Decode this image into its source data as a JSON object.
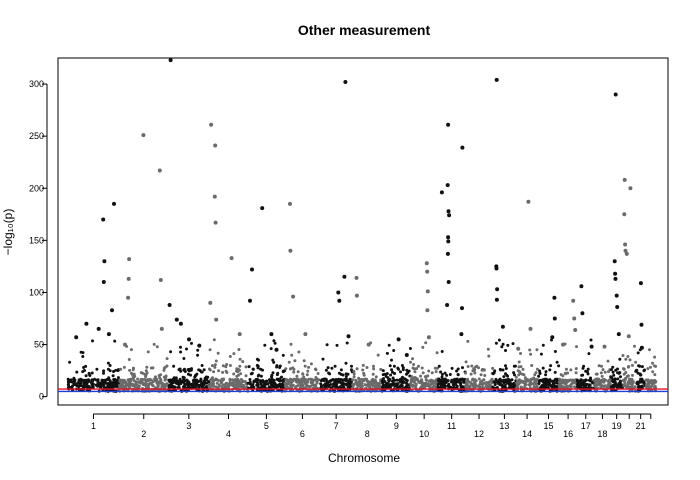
{
  "chart_data": {
    "type": "scatter",
    "title": "Other measurement",
    "xlabel": "Chromosome",
    "ylabel": "−log₁₀(p)",
    "ylim": [
      -8,
      325
    ],
    "y_ticks": [
      0,
      50,
      100,
      150,
      200,
      250,
      300
    ],
    "grid": false,
    "legend": "none",
    "chromosomes": [
      "1",
      "2",
      "3",
      "4",
      "5",
      "6",
      "7",
      "8",
      "9",
      "10",
      "11",
      "12",
      "13",
      "14",
      "15",
      "16",
      "17",
      "18",
      "19",
      "20",
      "21",
      "22"
    ],
    "chromosome_labels": [
      "1",
      "2",
      "3",
      "4",
      "5",
      "6",
      "7",
      "8",
      "9",
      "10",
      "11",
      "12",
      "13",
      "14",
      "15",
      "16",
      "17",
      "18",
      "19",
      "",
      "21",
      ""
    ],
    "chromosome_spans": [
      [
        0,
        249
      ],
      [
        249,
        492
      ],
      [
        492,
        690
      ],
      [
        690,
        880
      ],
      [
        880,
        1061
      ],
      [
        1061,
        1232
      ],
      [
        1232,
        1391
      ],
      [
        1391,
        1537
      ],
      [
        1537,
        1675
      ],
      [
        1675,
        1809
      ],
      [
        1809,
        1944
      ],
      [
        1944,
        2077
      ],
      [
        2077,
        2192
      ],
      [
        2192,
        2299
      ],
      [
        2299,
        2401
      ],
      [
        2401,
        2491
      ],
      [
        2491,
        2574
      ],
      [
        2574,
        2654
      ],
      [
        2654,
        2713
      ],
      [
        2713,
        2777
      ],
      [
        2777,
        2825
      ],
      [
        2825,
        2876
      ]
    ],
    "colors": {
      "odd": "#111111",
      "even": "#6b6b6b",
      "threshold_red": "#e8112d",
      "threshold_blue": "#1e3fd8"
    },
    "thresholds": [
      {
        "value": 7.3,
        "color": "#e8112d"
      },
      {
        "value": 5,
        "color": "#1e3fd8"
      }
    ],
    "series": [
      {
        "points": [
          {
            "chr": 1,
            "pos": 40,
            "p": 57
          },
          {
            "chr": 1,
            "pos": 90,
            "p": 70
          },
          {
            "chr": 1,
            "pos": 150,
            "p": 65
          },
          {
            "chr": 1,
            "pos": 175,
            "p": 110
          },
          {
            "chr": 1,
            "pos": 178,
            "p": 130
          },
          {
            "chr": 1,
            "pos": 172,
            "p": 170
          },
          {
            "chr": 1,
            "pos": 225,
            "p": 185
          },
          {
            "chr": 1,
            "pos": 215,
            "p": 83
          },
          {
            "chr": 1,
            "pos": 200,
            "p": 60
          },
          {
            "chr": 2,
            "pos": 30,
            "p": 50
          },
          {
            "chr": 2,
            "pos": 45,
            "p": 95
          },
          {
            "chr": 2,
            "pos": 48,
            "p": 113
          },
          {
            "chr": 2,
            "pos": 50,
            "p": 132
          },
          {
            "chr": 2,
            "pos": 120,
            "p": 251
          },
          {
            "chr": 2,
            "pos": 200,
            "p": 217
          },
          {
            "chr": 2,
            "pos": 205,
            "p": 112
          },
          {
            "chr": 2,
            "pos": 210,
            "p": 65
          },
          {
            "chr": 3,
            "pos": 10,
            "p": 323
          },
          {
            "chr": 3,
            "pos": 5,
            "p": 88
          },
          {
            "chr": 3,
            "pos": 40,
            "p": 74
          },
          {
            "chr": 3,
            "pos": 60,
            "p": 70
          },
          {
            "chr": 3,
            "pos": 100,
            "p": 55
          },
          {
            "chr": 3,
            "pos": 150,
            "p": 49
          },
          {
            "chr": 4,
            "pos": 10,
            "p": 261
          },
          {
            "chr": 4,
            "pos": 6,
            "p": 90
          },
          {
            "chr": 4,
            "pos": 30,
            "p": 241
          },
          {
            "chr": 4,
            "pos": 28,
            "p": 192
          },
          {
            "chr": 4,
            "pos": 32,
            "p": 167
          },
          {
            "chr": 4,
            "pos": 35,
            "p": 74
          },
          {
            "chr": 4,
            "pos": 110,
            "p": 133
          },
          {
            "chr": 4,
            "pos": 150,
            "p": 60
          },
          {
            "chr": 5,
            "pos": 10,
            "p": 92
          },
          {
            "chr": 5,
            "pos": 20,
            "p": 122
          },
          {
            "chr": 5,
            "pos": 70,
            "p": 181
          },
          {
            "chr": 5,
            "pos": 115,
            "p": 60
          },
          {
            "chr": 5,
            "pos": 140,
            "p": 45
          },
          {
            "chr": 6,
            "pos": 25,
            "p": 185
          },
          {
            "chr": 6,
            "pos": 27,
            "p": 140
          },
          {
            "chr": 6,
            "pos": 40,
            "p": 96
          },
          {
            "chr": 6,
            "pos": 100,
            "p": 60
          },
          {
            "chr": 7,
            "pos": 90,
            "p": 100
          },
          {
            "chr": 7,
            "pos": 95,
            "p": 92
          },
          {
            "chr": 7,
            "pos": 125,
            "p": 302
          },
          {
            "chr": 7,
            "pos": 120,
            "p": 115
          },
          {
            "chr": 7,
            "pos": 140,
            "p": 58
          },
          {
            "chr": 8,
            "pos": 20,
            "p": 114
          },
          {
            "chr": 8,
            "pos": 22,
            "p": 97
          },
          {
            "chr": 8,
            "pos": 80,
            "p": 50
          },
          {
            "chr": 9,
            "pos": 80,
            "p": 55
          },
          {
            "chr": 9,
            "pos": 120,
            "p": 40
          },
          {
            "chr": 10,
            "pos": 80,
            "p": 128
          },
          {
            "chr": 10,
            "pos": 82,
            "p": 120
          },
          {
            "chr": 10,
            "pos": 85,
            "p": 101
          },
          {
            "chr": 10,
            "pos": 83,
            "p": 83
          },
          {
            "chr": 10,
            "pos": 90,
            "p": 57
          },
          {
            "chr": 11,
            "pos": 20,
            "p": 196
          },
          {
            "chr": 11,
            "pos": 50,
            "p": 261
          },
          {
            "chr": 11,
            "pos": 48,
            "p": 203
          },
          {
            "chr": 11,
            "pos": 52,
            "p": 178
          },
          {
            "chr": 11,
            "pos": 55,
            "p": 174
          },
          {
            "chr": 11,
            "pos": 50,
            "p": 153
          },
          {
            "chr": 11,
            "pos": 51,
            "p": 149
          },
          {
            "chr": 11,
            "pos": 49,
            "p": 137
          },
          {
            "chr": 11,
            "pos": 53,
            "p": 110
          },
          {
            "chr": 11,
            "pos": 45,
            "p": 88
          },
          {
            "chr": 11,
            "pos": 120,
            "p": 239
          },
          {
            "chr": 11,
            "pos": 118,
            "p": 85
          },
          {
            "chr": 11,
            "pos": 115,
            "p": 60
          },
          {
            "chr": 13,
            "pos": 20,
            "p": 304
          },
          {
            "chr": 13,
            "pos": 18,
            "p": 125
          },
          {
            "chr": 13,
            "pos": 19,
            "p": 123
          },
          {
            "chr": 13,
            "pos": 22,
            "p": 103
          },
          {
            "chr": 13,
            "pos": 21,
            "p": 93
          },
          {
            "chr": 13,
            "pos": 50,
            "p": 67
          },
          {
            "chr": 14,
            "pos": 10,
            "p": 46
          },
          {
            "chr": 14,
            "pos": 60,
            "p": 187
          },
          {
            "chr": 14,
            "pos": 70,
            "p": 65
          },
          {
            "chr": 15,
            "pos": 80,
            "p": 95
          },
          {
            "chr": 15,
            "pos": 82,
            "p": 75
          },
          {
            "chr": 15,
            "pos": 70,
            "p": 57
          },
          {
            "chr": 16,
            "pos": 20,
            "p": 50
          },
          {
            "chr": 16,
            "pos": 70,
            "p": 92
          },
          {
            "chr": 16,
            "pos": 75,
            "p": 75
          },
          {
            "chr": 16,
            "pos": 80,
            "p": 64
          },
          {
            "chr": 17,
            "pos": 20,
            "p": 106
          },
          {
            "chr": 17,
            "pos": 25,
            "p": 80
          },
          {
            "chr": 17,
            "pos": 70,
            "p": 48
          },
          {
            "chr": 18,
            "pos": 50,
            "p": 48
          },
          {
            "chr": 19,
            "pos": 25,
            "p": 290
          },
          {
            "chr": 19,
            "pos": 20,
            "p": 130
          },
          {
            "chr": 19,
            "pos": 22,
            "p": 118
          },
          {
            "chr": 19,
            "pos": 24,
            "p": 113
          },
          {
            "chr": 19,
            "pos": 30,
            "p": 97
          },
          {
            "chr": 19,
            "pos": 32,
            "p": 86
          },
          {
            "chr": 19,
            "pos": 40,
            "p": 60
          },
          {
            "chr": 20,
            "pos": 10,
            "p": 208
          },
          {
            "chr": 20,
            "pos": 8,
            "p": 175
          },
          {
            "chr": 20,
            "pos": 12,
            "p": 146
          },
          {
            "chr": 20,
            "pos": 14,
            "p": 140
          },
          {
            "chr": 20,
            "pos": 20,
            "p": 137
          },
          {
            "chr": 20,
            "pos": 38,
            "p": 200
          },
          {
            "chr": 20,
            "pos": 30,
            "p": 58
          },
          {
            "chr": 21,
            "pos": 25,
            "p": 109
          },
          {
            "chr": 21,
            "pos": 28,
            "p": 69
          },
          {
            "chr": 21,
            "pos": 30,
            "p": 47
          },
          {
            "chr": 22,
            "pos": 30,
            "p": 15
          }
        ]
      }
    ]
  }
}
